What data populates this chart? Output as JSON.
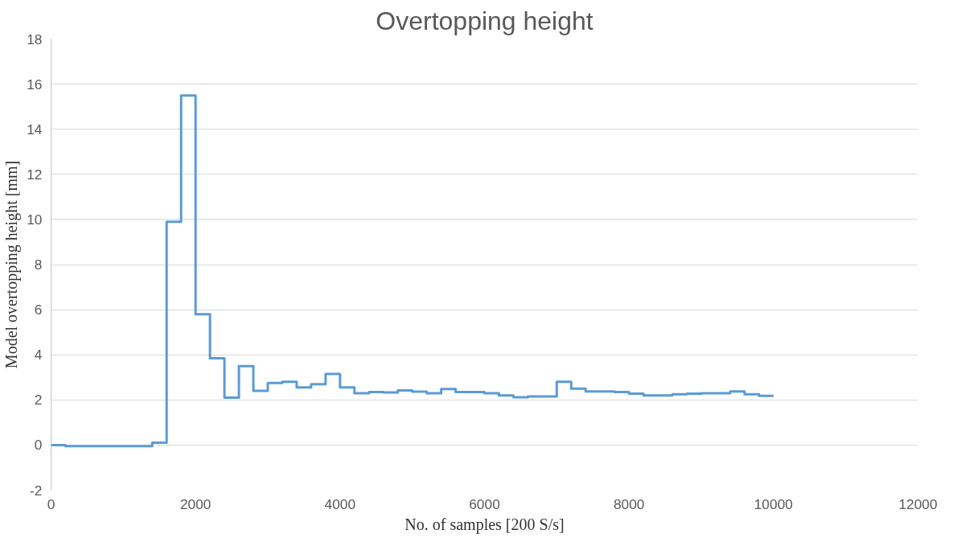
{
  "chart_data": {
    "type": "step",
    "title": "Overtopping height",
    "xlabel": "No. of samples [200 S/s]",
    "ylabel": "Model overtopping height [mm]",
    "x": [
      0,
      200,
      400,
      600,
      800,
      1000,
      1200,
      1400,
      1600,
      1800,
      2000,
      2200,
      2400,
      2600,
      2800,
      3000,
      3200,
      3400,
      3600,
      3800,
      4000,
      4200,
      4400,
      4600,
      4800,
      5000,
      5200,
      5400,
      5600,
      5800,
      6000,
      6200,
      6400,
      6600,
      6800,
      7000,
      7200,
      7400,
      7600,
      7800,
      8000,
      8200,
      8400,
      8600,
      8800,
      9000,
      9200,
      9400,
      9600,
      9800,
      10000
    ],
    "series": [
      {
        "color": "#5b9bd5",
        "values": [
          0.0,
          -0.05,
          -0.05,
          -0.05,
          -0.05,
          -0.05,
          -0.05,
          0.1,
          9.9,
          15.5,
          5.8,
          3.85,
          2.1,
          3.5,
          2.4,
          2.75,
          2.8,
          2.55,
          2.7,
          3.15,
          2.55,
          2.3,
          2.35,
          2.33,
          2.42,
          2.37,
          2.3,
          2.48,
          2.35,
          2.35,
          2.3,
          2.2,
          2.12,
          2.15,
          2.15,
          2.8,
          2.5,
          2.38,
          2.38,
          2.35,
          2.28,
          2.2,
          2.2,
          2.25,
          2.28,
          2.3,
          2.3,
          2.38,
          2.25,
          2.18,
          2.18
        ]
      }
    ],
    "xlim": [
      0,
      12000
    ],
    "xticks": [
      0,
      2000,
      4000,
      6000,
      8000,
      10000,
      12000
    ],
    "ylim": [
      -2,
      18
    ],
    "yticks": [
      -2,
      0,
      2,
      4,
      6,
      8,
      10,
      12,
      14,
      16,
      18
    ],
    "grid": "y",
    "line_style": "solid"
  }
}
